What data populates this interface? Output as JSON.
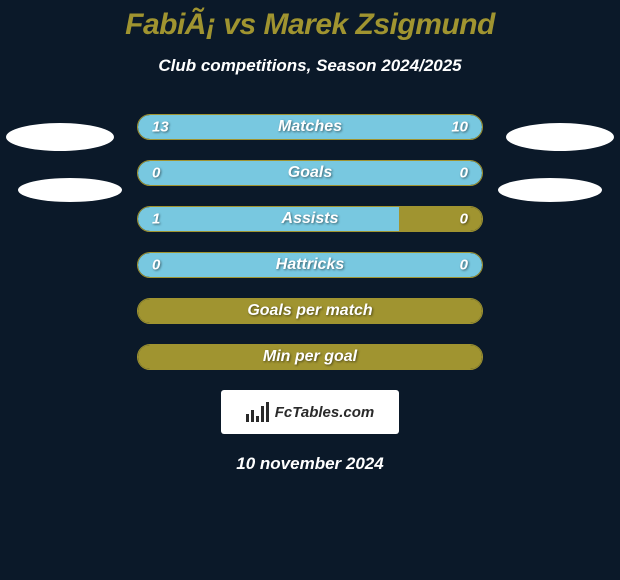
{
  "title": "FabiÃ¡ vs Marek Zsigmund",
  "subtitle": "Club competitions, Season 2024/2025",
  "date": "10 november 2024",
  "logo_text": "FcTables.com",
  "colors": {
    "background": "#0b1929",
    "accent": "#a09430",
    "bar_left": "#78c8e0",
    "bar_right": "#78c8e0",
    "bar_empty": "#a09430",
    "text": "#ffffff"
  },
  "stats": [
    {
      "label": "Matches",
      "left_val": "13",
      "right_val": "10",
      "left_pct": 56.5,
      "right_pct": 43.5,
      "left_color": "#78c8e0",
      "right_color": "#78c8e0",
      "show_values": true
    },
    {
      "label": "Goals",
      "left_val": "0",
      "right_val": "0",
      "left_pct": 50,
      "right_pct": 50,
      "left_color": "#78c8e0",
      "right_color": "#78c8e0",
      "show_values": true
    },
    {
      "label": "Assists",
      "left_val": "1",
      "right_val": "0",
      "left_pct": 76,
      "right_pct": 24,
      "left_color": "#78c8e0",
      "right_color": "#a09430",
      "show_values": true
    },
    {
      "label": "Hattricks",
      "left_val": "0",
      "right_val": "0",
      "left_pct": 50,
      "right_pct": 50,
      "left_color": "#78c8e0",
      "right_color": "#78c8e0",
      "show_values": true
    },
    {
      "label": "Goals per match",
      "left_val": "",
      "right_val": "",
      "left_pct": 100,
      "right_pct": 0,
      "full_color": "#a09430",
      "show_values": false
    },
    {
      "label": "Min per goal",
      "left_val": "",
      "right_val": "",
      "left_pct": 100,
      "right_pct": 0,
      "full_color": "#a09430",
      "show_values": false
    }
  ]
}
